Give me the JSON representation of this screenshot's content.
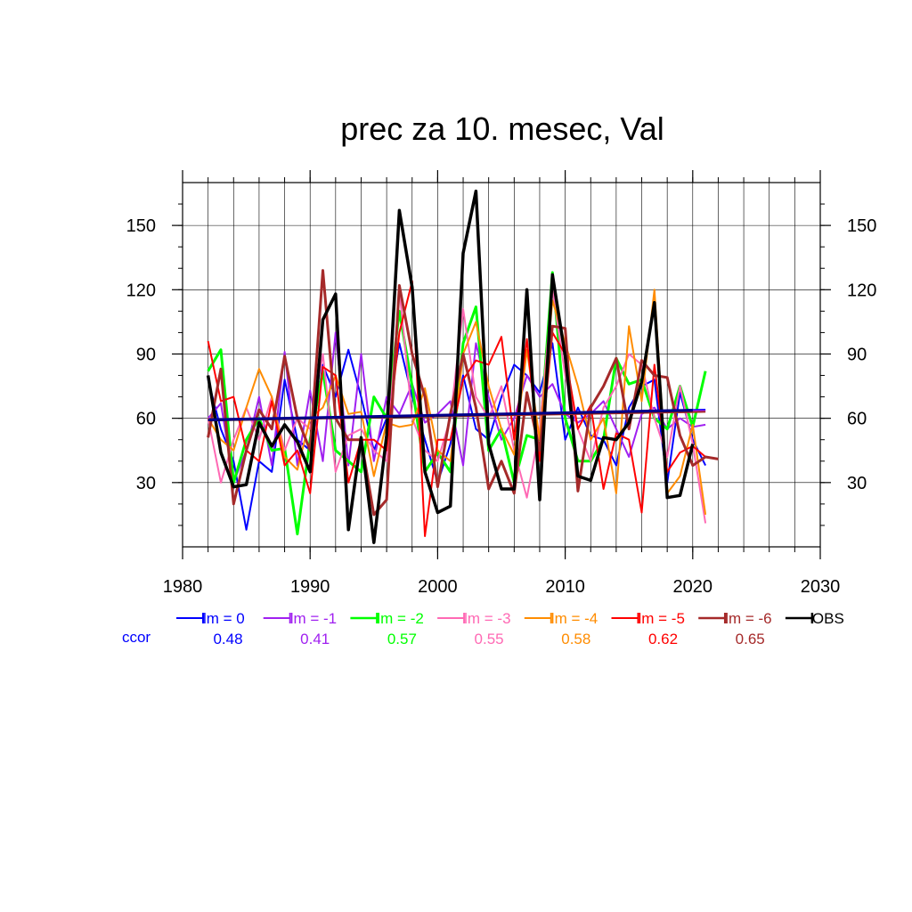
{
  "chart_data": {
    "type": "line",
    "title": "prec za 10. mesec, Val",
    "xlim": [
      1980,
      2030
    ],
    "ylim": [
      0,
      170
    ],
    "x_ticks": [
      1980,
      1990,
      2000,
      2010,
      2020,
      2030
    ],
    "y_ticks": [
      30,
      60,
      90,
      120,
      150
    ],
    "grid": true,
    "legend_position": "bottom",
    "ccor_label": "ccor",
    "ccor_label_color": "#0000ff",
    "series": [
      {
        "name": "lm = 0",
        "color": "#0000ff",
        "ccor": "0.48",
        "width": 2,
        "x": [
          1982,
          1983,
          1984,
          1985,
          1986,
          1987,
          1988,
          1989,
          1990,
          1991,
          1992,
          1993,
          1994,
          1995,
          1996,
          1997,
          1998,
          1999,
          2000,
          2001,
          2002,
          2003,
          2004,
          2005,
          2006,
          2007,
          2008,
          2009,
          2010,
          2011,
          2012,
          2013,
          2014,
          2015,
          2016,
          2017,
          2018,
          2019,
          2020,
          2021
        ],
        "y": [
          78,
          55,
          40,
          8,
          40,
          35,
          78,
          50,
          45,
          85,
          70,
          92,
          70,
          45,
          60,
          95,
          70,
          50,
          30,
          48,
          80,
          55,
          50,
          70,
          85,
          80,
          72,
          95,
          50,
          65,
          52,
          50,
          38,
          65,
          75,
          78,
          30,
          72,
          50,
          38
        ]
      },
      {
        "name": "lm = -1",
        "color": "#a020f0",
        "ccor": "0.41",
        "width": 2,
        "x": [
          1982,
          1983,
          1984,
          1985,
          1986,
          1987,
          1988,
          1989,
          1990,
          1991,
          1992,
          1993,
          1994,
          1995,
          1996,
          1997,
          1998,
          1999,
          2000,
          2001,
          2002,
          2003,
          2004,
          2005,
          2006,
          2007,
          2008,
          2009,
          2010,
          2011,
          2012,
          2013,
          2014,
          2015,
          2016,
          2017,
          2018,
          2019,
          2020,
          2021
        ],
        "y": [
          60,
          67,
          30,
          45,
          70,
          38,
          91,
          38,
          73,
          40,
          100,
          38,
          90,
          40,
          70,
          62,
          76,
          58,
          62,
          68,
          38,
          95,
          70,
          50,
          60,
          80,
          70,
          76,
          62,
          58,
          62,
          68,
          55,
          42,
          62,
          65,
          55,
          60,
          56,
          57
        ]
      },
      {
        "name": "lm = -2",
        "color": "#00ff00",
        "ccor": "0.57",
        "width": 3,
        "x": [
          1982,
          1983,
          1984,
          1985,
          1986,
          1987,
          1988,
          1989,
          1990,
          1991,
          1992,
          1993,
          1994,
          1995,
          1996,
          1997,
          1998,
          1999,
          2000,
          2001,
          2002,
          2003,
          2004,
          2005,
          2006,
          2007,
          2008,
          2009,
          2010,
          2011,
          2012,
          2013,
          2014,
          2015,
          2016,
          2017,
          2018,
          2019,
          2020,
          2021
        ],
        "y": [
          82,
          92,
          30,
          50,
          60,
          45,
          46,
          6,
          50,
          82,
          45,
          40,
          35,
          70,
          60,
          110,
          75,
          35,
          44,
          35,
          95,
          112,
          45,
          55,
          30,
          52,
          50,
          128,
          60,
          40,
          40,
          50,
          88,
          76,
          78,
          60,
          55,
          75,
          56,
          82
        ]
      },
      {
        "name": "lm = -3",
        "color": "#ff69b4",
        "ccor": "0.55",
        "width": 2,
        "x": [
          1982,
          1983,
          1984,
          1985,
          1986,
          1987,
          1988,
          1989,
          1990,
          1991,
          1992,
          1993,
          1994,
          1995,
          1996,
          1997,
          1998,
          1999,
          2000,
          2001,
          2002,
          2003,
          2004,
          2005,
          2006,
          2007,
          2008,
          2009,
          2010,
          2011,
          2012,
          2013,
          2014,
          2015,
          2016,
          2017,
          2018,
          2019,
          2020,
          2021
        ],
        "y": [
          60,
          30,
          50,
          65,
          50,
          70,
          45,
          60,
          55,
          90,
          35,
          52,
          55,
          45,
          40,
          120,
          60,
          45,
          40,
          60,
          111,
          70,
          60,
          75,
          45,
          23,
          55,
          120,
          80,
          55,
          40,
          65,
          75,
          90,
          85,
          60,
          42,
          75,
          48,
          11
        ]
      },
      {
        "name": "lm = -4",
        "color": "#ff8c00",
        "ccor": "0.58",
        "width": 2,
        "x": [
          1982,
          1983,
          1984,
          1985,
          1986,
          1987,
          1988,
          1989,
          1990,
          1991,
          1992,
          1993,
          1994,
          1995,
          1996,
          1997,
          1998,
          1999,
          2000,
          2001,
          2002,
          2003,
          2004,
          2005,
          2006,
          2007,
          2008,
          2009,
          2010,
          2011,
          2012,
          2013,
          2014,
          2015,
          2016,
          2017,
          2018,
          2019,
          2020,
          2021
        ],
        "y": [
          60,
          50,
          45,
          65,
          83,
          70,
          42,
          36,
          60,
          65,
          80,
          62,
          63,
          33,
          58,
          56,
          57,
          74,
          45,
          40,
          90,
          105,
          75,
          55,
          43,
          92,
          50,
          115,
          95,
          75,
          50,
          60,
          25,
          103,
          68,
          120,
          25,
          33,
          57,
          15
        ]
      },
      {
        "name": "lm = -5",
        "color": "#ff0000",
        "ccor": "0.62",
        "width": 2,
        "x": [
          1982,
          1983,
          1984,
          1985,
          1986,
          1987,
          1988,
          1989,
          1990,
          1991,
          1992,
          1993,
          1994,
          1995,
          1996,
          1997,
          1998,
          1999,
          2000,
          2001,
          2002,
          2003,
          2004,
          2005,
          2006,
          2007,
          2008,
          2009,
          2010,
          2011,
          2012,
          2013,
          2014,
          2015,
          2016,
          2017,
          2018,
          2019,
          2020,
          2021
        ],
        "y": [
          96,
          68,
          70,
          45,
          40,
          68,
          38,
          45,
          25,
          84,
          80,
          30,
          50,
          50,
          45,
          100,
          124,
          5,
          50,
          50,
          78,
          87,
          85,
          98,
          50,
          97,
          40,
          100,
          90,
          55,
          66,
          27,
          53,
          50,
          16,
          85,
          35,
          44,
          47,
          42
        ]
      },
      {
        "name": "lm = -6",
        "color": "#a52a2a",
        "ccor": "0.65",
        "width": 3,
        "x": [
          1982,
          1983,
          1984,
          1985,
          1986,
          1987,
          1988,
          1989,
          1990,
          1991,
          1992,
          1993,
          1994,
          1995,
          1996,
          1997,
          1998,
          1999,
          2000,
          2001,
          2002,
          2003,
          2004,
          2005,
          2006,
          2007,
          2008,
          2009,
          2010,
          2011,
          2012,
          2013,
          2014,
          2015,
          2016,
          2017,
          2018,
          2019,
          2020,
          2021,
          2022
        ],
        "y": [
          51,
          83,
          20,
          45,
          64,
          55,
          89,
          60,
          45,
          129,
          60,
          50,
          50,
          15,
          22,
          122,
          90,
          70,
          28,
          62,
          90,
          65,
          27,
          40,
          25,
          72,
          45,
          103,
          102,
          26,
          65,
          75,
          88,
          55,
          87,
          80,
          79,
          52,
          38,
          42,
          41
        ]
      },
      {
        "name": "OBS",
        "color": "#000000",
        "ccor": "",
        "width": 3.5,
        "x": [
          1982,
          1983,
          1984,
          1985,
          1986,
          1987,
          1988,
          1989,
          1990,
          1991,
          1992,
          1993,
          1994,
          1995,
          1996,
          1997,
          1998,
          1999,
          2000,
          2001,
          2002,
          2003,
          2004,
          2005,
          2006,
          2007,
          2008,
          2009,
          2010,
          2011,
          2012,
          2013,
          2014,
          2015,
          2016,
          2017,
          2018,
          2019,
          2020
        ],
        "y": [
          80,
          44,
          28,
          29,
          58,
          47,
          57,
          49,
          35,
          106,
          118,
          8,
          51,
          2,
          52,
          157,
          121,
          35,
          16,
          19,
          137,
          166,
          48,
          27,
          27,
          120,
          22,
          127,
          89,
          33,
          31,
          51,
          50,
          58,
          77,
          114,
          23,
          24,
          48
        ]
      }
    ],
    "trend_lines": [
      {
        "color": "#0000ff",
        "x": [
          1982,
          2021
        ],
        "y": [
          59,
          64
        ],
        "width": 2
      },
      {
        "color": "#a020f0",
        "x": [
          1982,
          2021
        ],
        "y": [
          59,
          63.5
        ],
        "width": 2
      },
      {
        "color": "#a52a2a",
        "x": [
          1982,
          2021
        ],
        "y": [
          59,
          63
        ],
        "width": 2
      },
      {
        "color": "#000000",
        "x": [
          1982,
          2020
        ],
        "y": [
          59,
          63.5
        ],
        "width": 2
      },
      {
        "color": "#00008b",
        "x": [
          1982,
          2020
        ],
        "y": [
          59.3,
          63.8
        ],
        "width": 3
      }
    ]
  }
}
